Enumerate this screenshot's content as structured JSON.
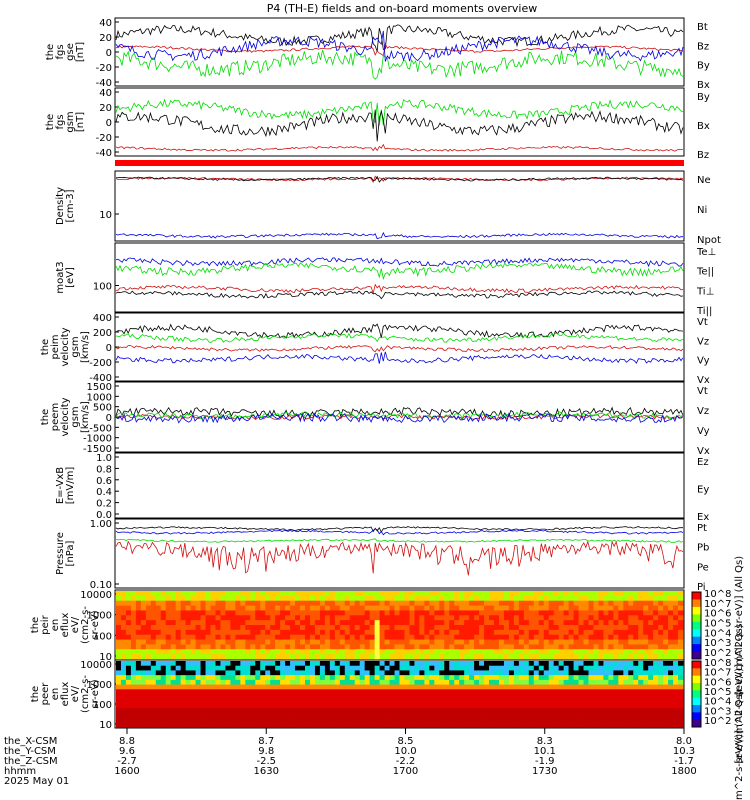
{
  "title": "P4 (TH-E) fields and on-board moments overview",
  "colors": {
    "black": "#000000",
    "red": "#d01010",
    "green": "#00dd00",
    "blue": "#0000e0",
    "blank": "#ffffff"
  },
  "chart_data": {
    "type": "line",
    "time_range": [
      "1600",
      "1800"
    ],
    "panels": [
      {
        "id": "fgs-gse",
        "ylabel": [
          "the",
          "fgs",
          "gse",
          "[nT]"
        ],
        "yticks": [
          "40",
          "20",
          "0",
          "-20",
          "-40"
        ],
        "ylim": [
          -45,
          45
        ],
        "series": [
          {
            "name": "Bt",
            "color": "black",
            "base": 22,
            "amp": 8,
            "noise": 6
          },
          {
            "name": "Bz",
            "color": "red",
            "base": 4,
            "amp": 3,
            "noise": 1.5
          },
          {
            "name": "By",
            "color": "green",
            "base": -15,
            "amp": 8,
            "noise": 10
          },
          {
            "name": "Bx",
            "color": "blue",
            "base": 5,
            "amp": 10,
            "noise": 7
          }
        ]
      },
      {
        "id": "fgs-gsm",
        "ylabel": [
          "the",
          "fgs",
          "gsm",
          "[nT]"
        ],
        "yticks": [
          "40",
          "20",
          "0",
          "-20",
          "-40"
        ],
        "ylim": [
          -50,
          45
        ],
        "series": [
          {
            "name": "By",
            "color": "green",
            "base": 15,
            "amp": 8,
            "noise": 6
          },
          {
            "name": "Bx",
            "color": "black",
            "base": -5,
            "amp": 10,
            "noise": 8
          },
          {
            "name": "Bz",
            "color": "red",
            "base": -40,
            "amp": 2,
            "noise": 1.5
          }
        ]
      },
      {
        "id": "density",
        "ylabel": [
          "Density",
          "[cm-3]"
        ],
        "yticks": [
          "10"
        ],
        "log": true,
        "ylim": [
          0.3,
          50
        ],
        "series": [
          {
            "name": "Ne",
            "color": "red",
            "base": 28,
            "amp": 2,
            "noise": 2
          },
          {
            "name": "Ni",
            "color": "black",
            "base": 28,
            "amp": 2,
            "noise": 2
          },
          {
            "name": "Npot",
            "color": "blue",
            "base": 0.45,
            "amp": 0.04,
            "noise": 0.04
          }
        ]
      },
      {
        "id": "temperature",
        "ylabel": [
          "moat3",
          "[eV]"
        ],
        "yticks": [
          "100"
        ],
        "log": true,
        "ylim": [
          40,
          2000
        ],
        "series": [
          {
            "name": "Te⊥",
            "color": "red",
            "base": 150,
            "amp": 15,
            "noise": 15
          },
          {
            "name": "Te||",
            "color": "black",
            "base": 110,
            "amp": 10,
            "noise": 12
          },
          {
            "name": "Ti⊥",
            "color": "blue",
            "base": 700,
            "amp": 80,
            "noise": 100
          },
          {
            "name": "Ti||",
            "color": "green",
            "base": 480,
            "amp": 80,
            "noise": 90
          }
        ]
      },
      {
        "id": "peim-velocity",
        "ylabel": [
          "the",
          "peim",
          "velocity",
          "gsm",
          "[km/s]"
        ],
        "yticks": [
          "400",
          "200",
          "0",
          "-200",
          "-400"
        ],
        "ylim": [
          -440,
          440
        ],
        "series": [
          {
            "name": "Vt",
            "color": "black",
            "base": 200,
            "amp": 50,
            "noise": 40
          },
          {
            "name": "Vz",
            "color": "red",
            "base": -20,
            "amp": 20,
            "noise": 20
          },
          {
            "name": "Vy",
            "color": "green",
            "base": 120,
            "amp": 30,
            "noise": 30
          },
          {
            "name": "Vx",
            "color": "blue",
            "base": -150,
            "amp": 30,
            "noise": 30
          }
        ]
      },
      {
        "id": "peem-velocity",
        "ylabel": [
          "the",
          "peem",
          "velocity",
          "gsm",
          "[km/s]"
        ],
        "yticks": [
          "1500",
          "1000",
          "500",
          "0",
          "-500",
          "-1000",
          "-1500"
        ],
        "ylim": [
          -1600,
          1600
        ],
        "series": [
          {
            "name": "Vt",
            "color": "black",
            "base": 200,
            "amp": 60,
            "noise": 180
          },
          {
            "name": "Vz",
            "color": "red",
            "base": 0,
            "amp": 30,
            "noise": 90
          },
          {
            "name": "Vy",
            "color": "green",
            "base": 80,
            "amp": 40,
            "noise": 120
          },
          {
            "name": "Vx",
            "color": "blue",
            "base": -50,
            "amp": 40,
            "noise": 180
          }
        ]
      },
      {
        "id": "efield",
        "ylabel": [
          "E=-VxB",
          "[mV/m]"
        ],
        "yticks": [
          "1.0",
          "0.8",
          "0.6",
          "0.4",
          "0.2",
          "0.0"
        ],
        "ylim": [
          0,
          1
        ],
        "series": [
          {
            "name": "Ez",
            "color": "red"
          },
          {
            "name": "Ey",
            "color": "green"
          },
          {
            "name": "Ex",
            "color": "blue"
          }
        ]
      },
      {
        "id": "pressure",
        "ylabel": [
          "Pressure",
          "[nPa]"
        ],
        "yticks": [
          "1.00",
          "0.10"
        ],
        "log": true,
        "ylim": [
          0.015,
          2.5
        ],
        "series": [
          {
            "name": "Pt",
            "color": "black",
            "base": 1.25,
            "amp": 0.1,
            "noise": 0.08
          },
          {
            "name": "Pb",
            "color": "red",
            "base": 0.25,
            "amp": 0.08,
            "noise": 0.15
          },
          {
            "name": "Pe",
            "color": "green",
            "base": 0.5,
            "amp": 0.03,
            "noise": 0.03
          },
          {
            "name": "Pi",
            "color": "blue",
            "base": 0.95,
            "amp": 0.08,
            "noise": 0.06
          }
        ]
      },
      {
        "id": "peir-eflux",
        "ylabel": [
          "the",
          "peir",
          "en",
          "eflux",
          "eV/",
          "(cm2-s-",
          "sr-eV)"
        ],
        "yticks": [
          "10000",
          "1000",
          "100",
          "10"
        ],
        "type": "heatmap",
        "species": "ion"
      },
      {
        "id": "peer-eflux",
        "ylabel": [
          "the",
          "peer",
          "en",
          "eflux",
          "eV/",
          "(cm2-s-",
          "sr-eV)"
        ],
        "yticks": [
          "10000",
          "1000",
          "100",
          "10"
        ],
        "type": "heatmap",
        "species": "electron"
      }
    ],
    "colorbar": {
      "ticks": [
        "10^8",
        "10^7",
        "10^6",
        "10^5",
        "10^4",
        "10^3",
        "10^2"
      ],
      "labels": [
        "[eV/(cm^2-s-sr-eV)] (All Qs)",
        "[eV/(cm^2-s-sr-eV)] (All Qs)"
      ],
      "bottom_label": "[eV/(cm^2-s-sr-eV)] (All Qs)"
    },
    "x_axis": {
      "row_labels": [
        "the_X-CSM",
        "the_Y-CSM",
        "the_Z-CSM",
        "hhmm"
      ],
      "date": "2025 May 01",
      "ticks": [
        {
          "v": [
            "8.8",
            "9.6",
            "-2.7",
            "1600"
          ]
        },
        {
          "v": [
            "8.7",
            "9.8",
            "-2.5",
            "1630"
          ]
        },
        {
          "v": [
            "8.5",
            "10.0",
            "-2.2",
            "1700"
          ]
        },
        {
          "v": [
            "8.3",
            "10.1",
            "-1.9",
            "1730"
          ]
        },
        {
          "v": [
            "8.0",
            "10.3",
            "-1.7",
            "1800"
          ]
        }
      ]
    }
  }
}
